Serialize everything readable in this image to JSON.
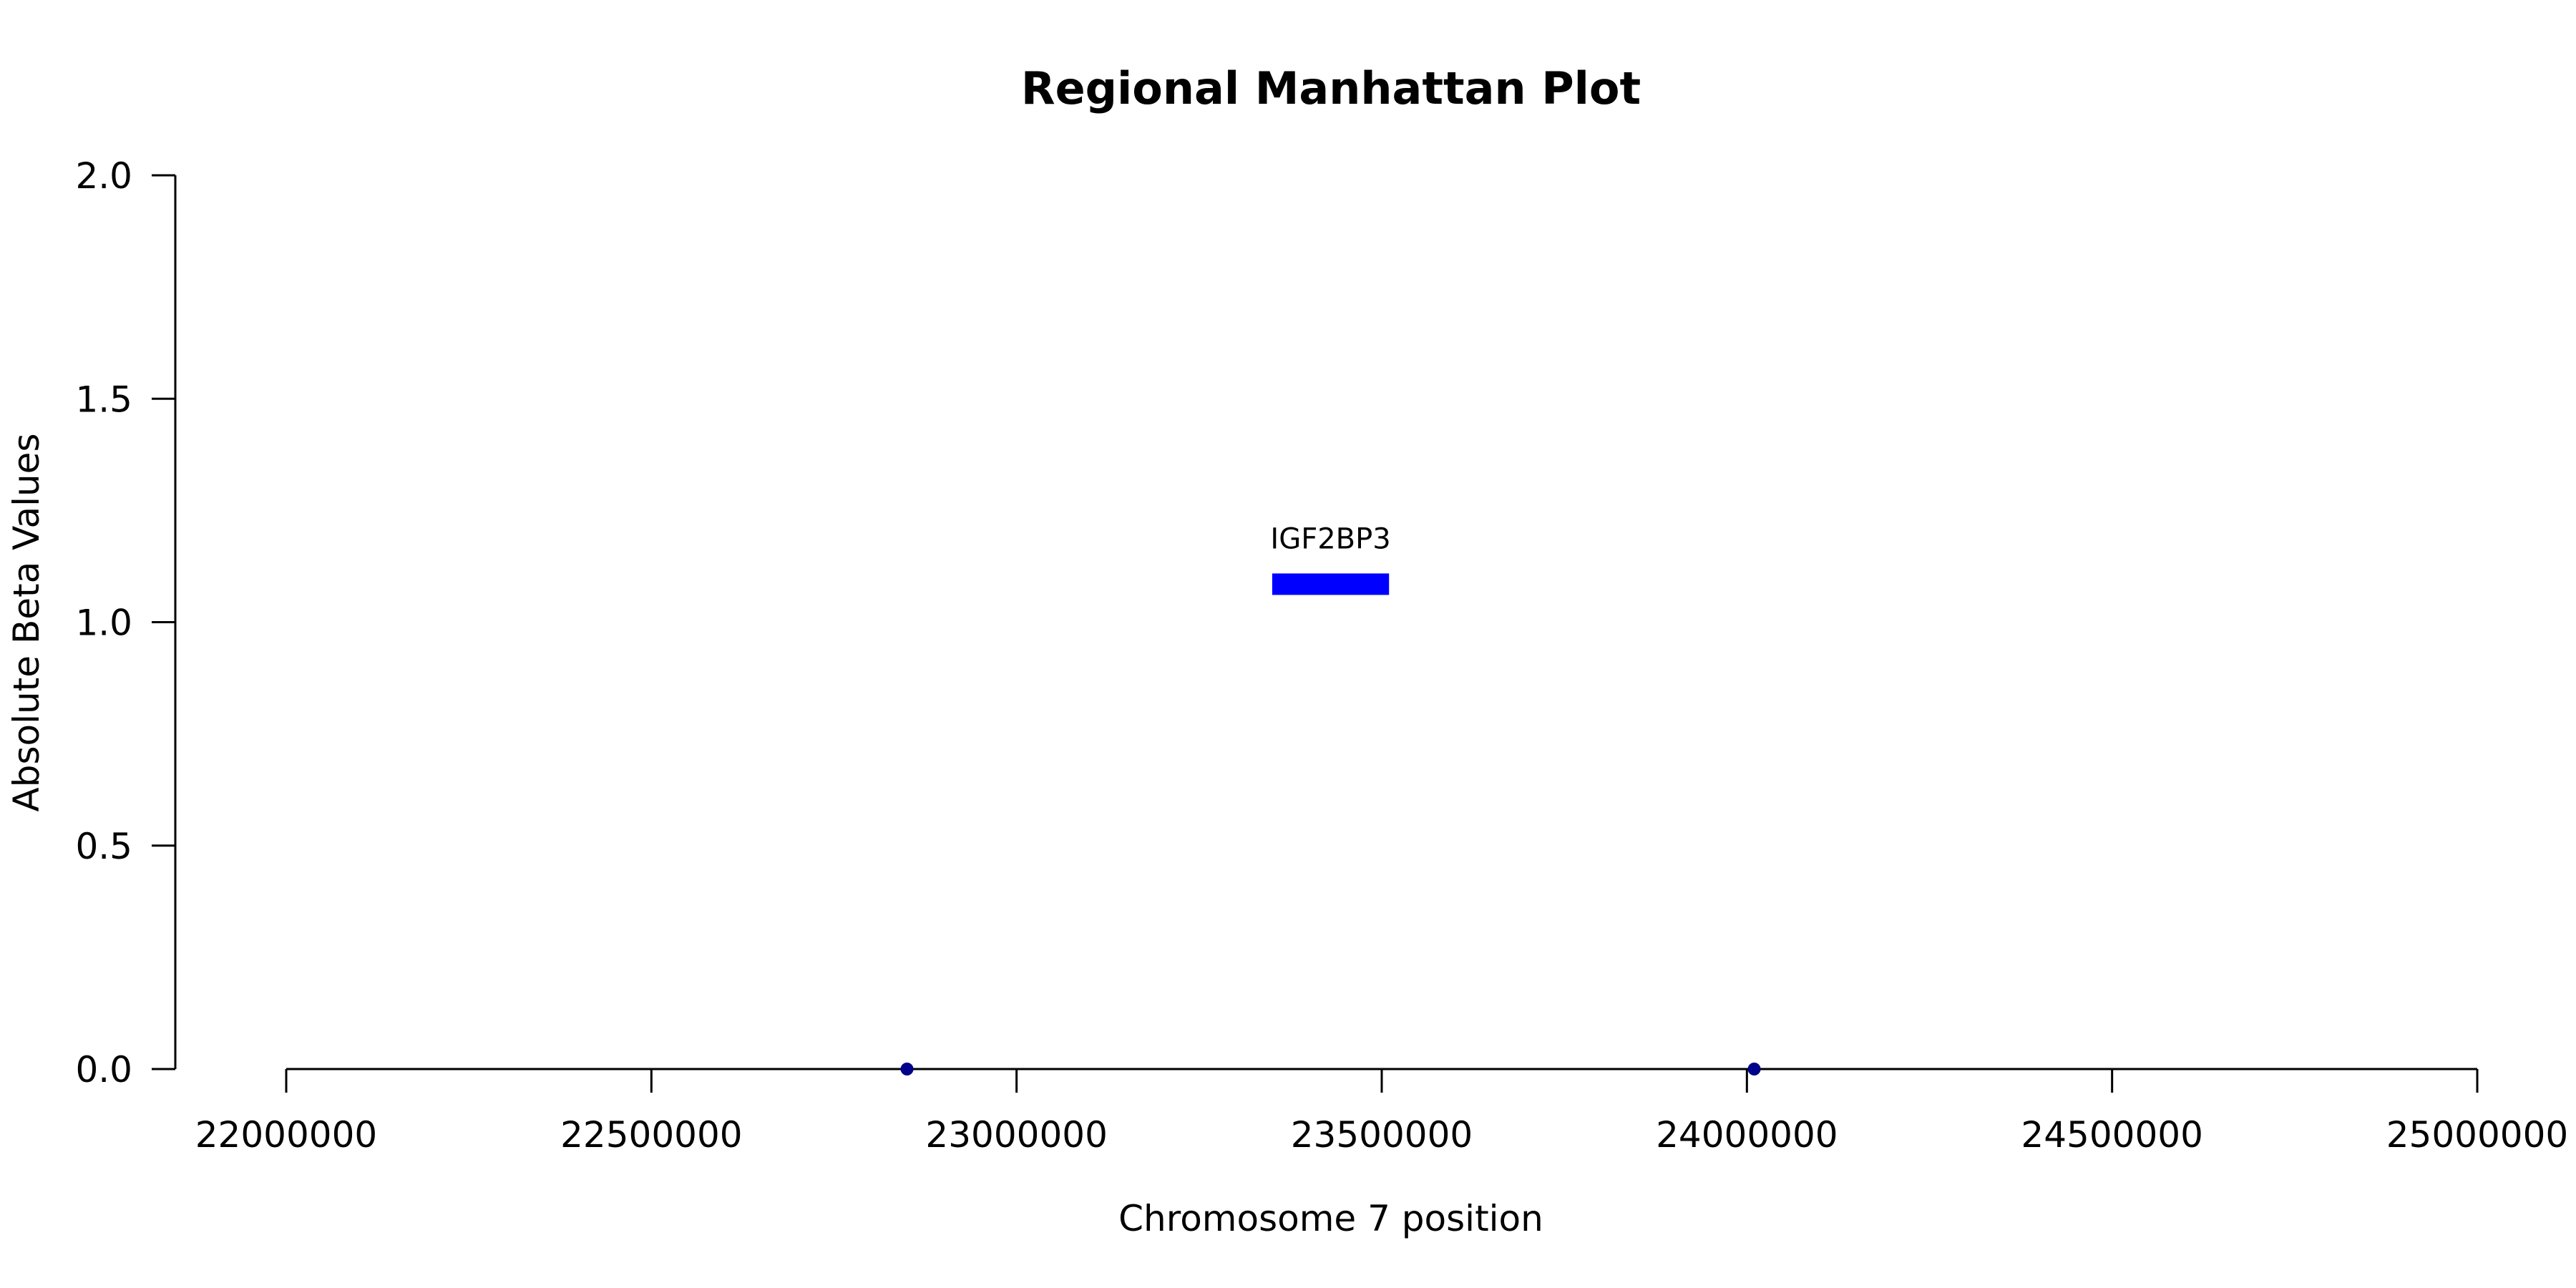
{
  "chart_data": {
    "type": "scatter",
    "title": "Regional Manhattan Plot",
    "xlabel": "Chromosome 7 position",
    "ylabel": "Absolute Beta Values",
    "xlim": [
      22000000,
      25000000
    ],
    "ylim": [
      0,
      2
    ],
    "x_ticks": [
      22000000,
      22500000,
      23000000,
      23500000,
      24000000,
      24500000,
      25000000
    ],
    "x_tick_labels": [
      "22000000",
      "22500000",
      "23000000",
      "23500000",
      "24000000",
      "24500000",
      "25000000"
    ],
    "y_ticks": [
      0,
      0.5,
      1,
      1.5,
      2
    ],
    "y_tick_labels": [
      "0.0",
      "0.5",
      "1.0",
      "1.5",
      "2.0"
    ],
    "grid": false,
    "points": [
      {
        "x": 22850000,
        "y": 0
      },
      {
        "x": 24010000,
        "y": 0
      }
    ],
    "point_color": "#00008b",
    "genes": [
      {
        "name": "IGF2BP3",
        "start": 23350000,
        "end": 23510000,
        "y": 1.085,
        "color": "#0000ff"
      }
    ]
  }
}
